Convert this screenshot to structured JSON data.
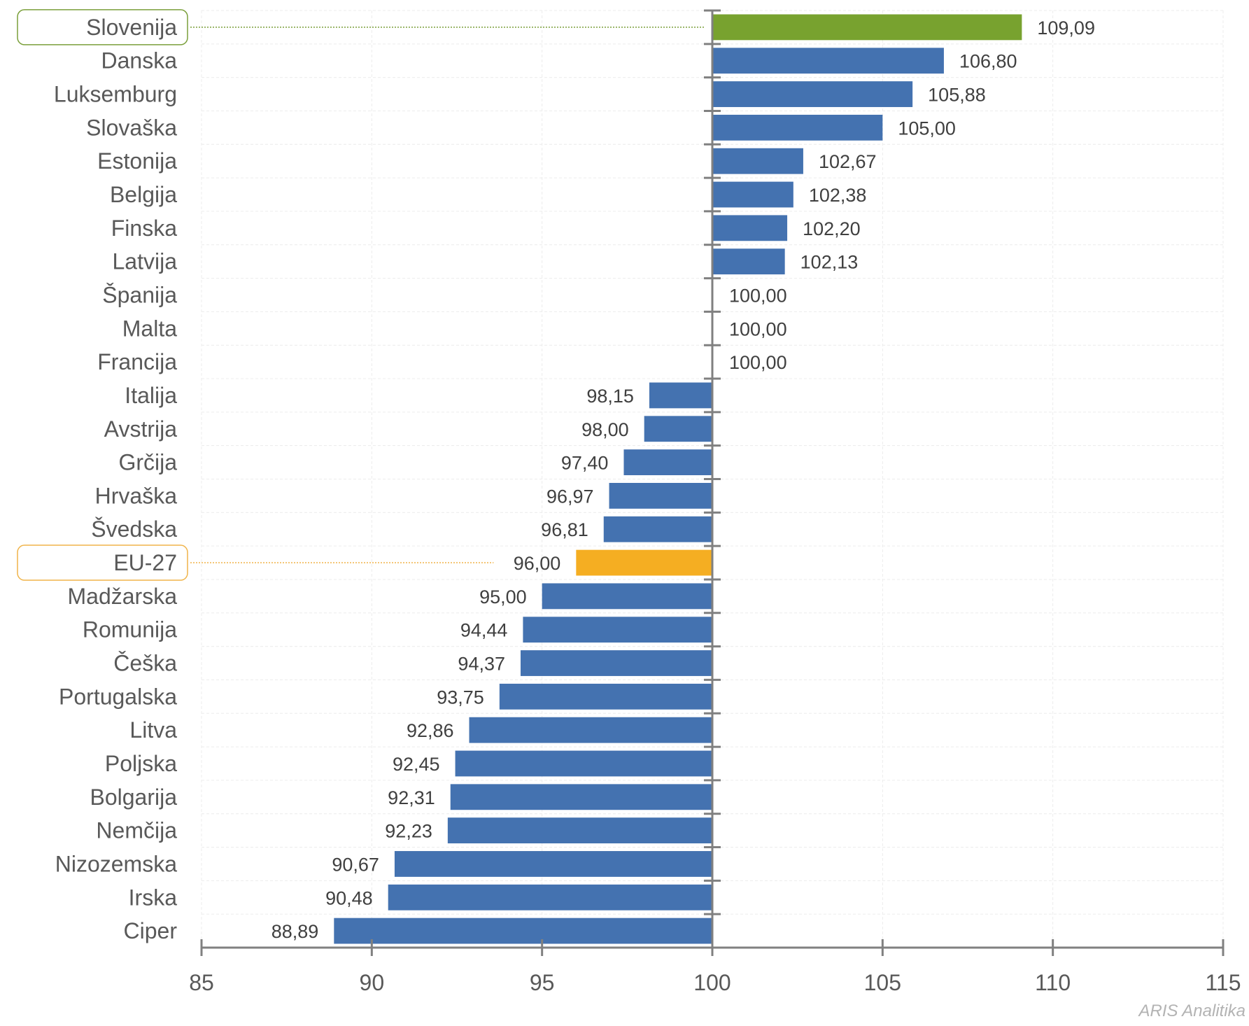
{
  "chart_data": {
    "type": "bar",
    "orientation": "horizontal",
    "title": "",
    "xlabel": "",
    "ylabel": "",
    "xlim": [
      85,
      115
    ],
    "baseline": 100,
    "x_ticks": [
      85,
      90,
      95,
      100,
      105,
      110,
      115
    ],
    "grid": true,
    "legend": "none",
    "decimal_separator": ",",
    "categories": [
      "Slovenija",
      "Danska",
      "Luksemburg",
      "Slovaška",
      "Estonija",
      "Belgija",
      "Finska",
      "Latvija",
      "Španija",
      "Malta",
      "Francija",
      "Italija",
      "Avstrija",
      "Grčija",
      "Hrvaška",
      "Švedska",
      "EU-27",
      "Madžarska",
      "Romunija",
      "Češka",
      "Portugalska",
      "Litva",
      "Poljska",
      "Bolgarija",
      "Nemčija",
      "Nizozemska",
      "Irska",
      "Ciper"
    ],
    "values": [
      109.09,
      106.8,
      105.88,
      105.0,
      102.67,
      102.38,
      102.2,
      102.13,
      100.0,
      100.0,
      100.0,
      98.15,
      98.0,
      97.4,
      96.97,
      96.81,
      96.0,
      95.0,
      94.44,
      94.37,
      93.75,
      92.86,
      92.45,
      92.31,
      92.23,
      90.67,
      90.48,
      88.89
    ],
    "value_labels": [
      "109,09",
      "106,80",
      "105,88",
      "105,00",
      "102,67",
      "102,38",
      "102,20",
      "102,13",
      "100,00",
      "100,00",
      "100,00",
      "98,15",
      "98,00",
      "97,40",
      "96,97",
      "96,81",
      "96,00",
      "95,00",
      "94,44",
      "94,37",
      "93,75",
      "92,86",
      "92,45",
      "92,31",
      "92,23",
      "90,67",
      "90,48",
      "88,89"
    ],
    "highlights": [
      {
        "category": "Slovenija",
        "color": "#78A22F",
        "box_color": "#7A9F3A"
      },
      {
        "category": "EU-27",
        "color": "#F5AE22",
        "box_color": "#F0B44A"
      }
    ],
    "colors": {
      "default_bar": "#4472B0",
      "axis": "#808080",
      "gridline": "#ececec",
      "category_text": "#595959",
      "value_text": "#404040"
    }
  },
  "watermark": "ARIS Analitika"
}
